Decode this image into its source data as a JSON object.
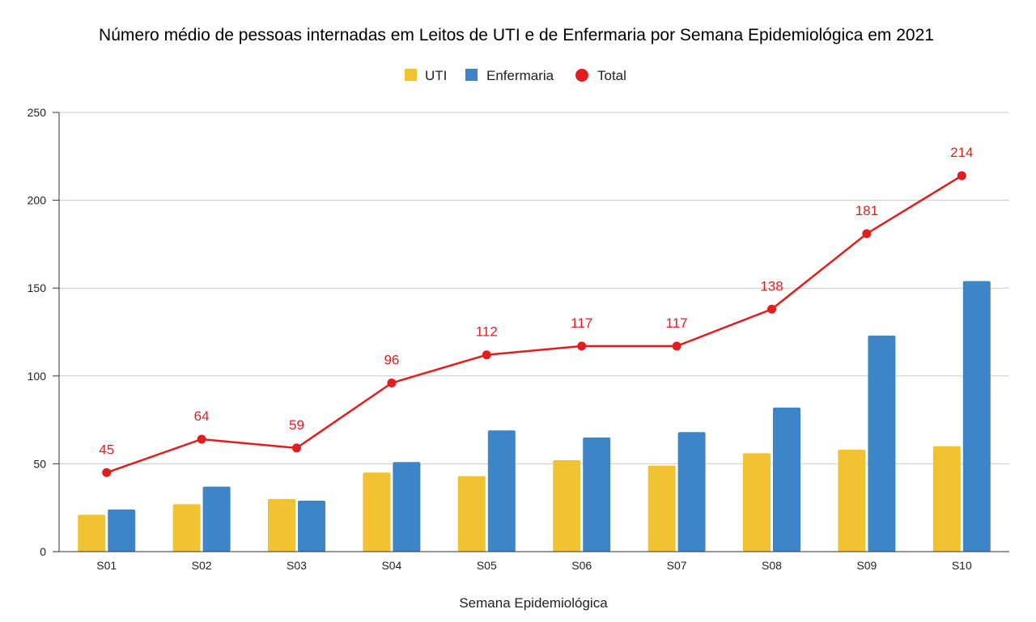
{
  "chart_data": {
    "type": "bar",
    "title": "Número médio de pessoas internadas em Leitos de UTI e de Enfermaria por Semana Epidemiológica em 2021",
    "xlabel": "Semana Epidemiológica",
    "ylabel": "",
    "ylim": [
      0,
      250
    ],
    "yticks": [
      0,
      50,
      100,
      150,
      200,
      250
    ],
    "grid": true,
    "legend_position": "top",
    "categories": [
      "S01",
      "S02",
      "S03",
      "S04",
      "S05",
      "S06",
      "S07",
      "S08",
      "S09",
      "S10"
    ],
    "series": [
      {
        "name": "UTI",
        "type": "bar",
        "color": "#F1C232",
        "values": [
          21,
          27,
          30,
          45,
          43,
          52,
          49,
          56,
          58,
          60
        ]
      },
      {
        "name": "Enfermaria",
        "type": "bar",
        "color": "#3D85C6",
        "values": [
          24,
          37,
          29,
          51,
          69,
          65,
          68,
          82,
          123,
          154
        ]
      },
      {
        "name": "Total",
        "type": "line",
        "color": "#E21D1D",
        "values": [
          45,
          64,
          59,
          96,
          112,
          117,
          117,
          138,
          181,
          214
        ],
        "data_labels": [
          "45",
          "64",
          "59",
          "96",
          "112",
          "117",
          "117",
          "138",
          "181",
          "214"
        ]
      }
    ]
  }
}
